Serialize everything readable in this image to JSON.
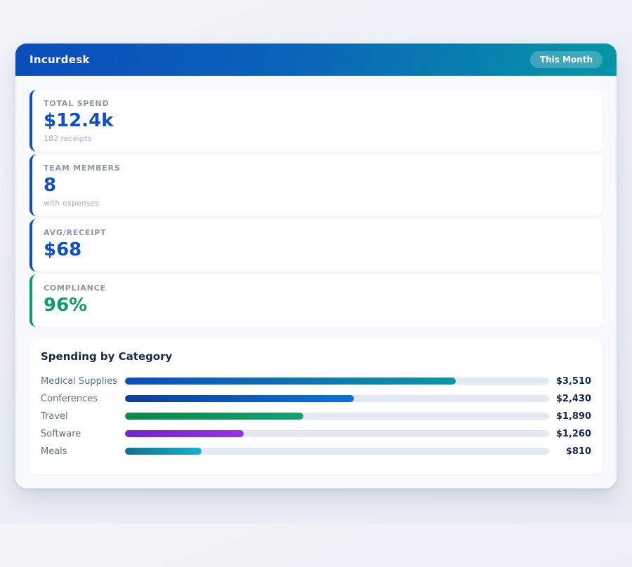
{
  "header": {
    "app_name": "Incurdesk",
    "period_badge": "This Month",
    "gradient_from": "#0b4dbb",
    "gradient_to": "#0796a6"
  },
  "stats": [
    {
      "label": "TOTAL SPEND",
      "value": "$12.4k",
      "sublabel": "182 receipts",
      "accent": "#1150c4"
    },
    {
      "label": "TEAM MEMBERS",
      "value": "8",
      "sublabel": "with expenses",
      "accent": "#1150c4"
    },
    {
      "label": "AVG/RECEIPT",
      "value": "$68",
      "sublabel": "",
      "accent": "#1150c4"
    },
    {
      "label": "COMPLIANCE",
      "value": "96%",
      "sublabel": "",
      "accent": "#0e9d62"
    }
  ],
  "spending": {
    "title": "Spending by Category",
    "rows": [
      {
        "label": "Medical Supplies",
        "value": "$3,510",
        "percent": 78,
        "color_from": "#0b4dbb",
        "color_to": "#0d96a6"
      },
      {
        "label": "Conferences",
        "value": "$2,430",
        "percent": 54,
        "color_from": "#0c3f9e",
        "color_to": "#0b72da"
      },
      {
        "label": "Travel",
        "value": "$1,890",
        "percent": 42,
        "color_from": "#0a8a47",
        "color_to": "#13a173"
      },
      {
        "label": "Software",
        "value": "$1,260",
        "percent": 28,
        "color_from": "#7222d6",
        "color_to": "#9333ea"
      },
      {
        "label": "Meals",
        "value": "$810",
        "percent": 18,
        "color_from": "#0e7290",
        "color_to": "#12b2d2"
      }
    ]
  },
  "chart_data": {
    "type": "bar",
    "title": "Spending by Category",
    "categories": [
      "Medical Supplies",
      "Conferences",
      "Travel",
      "Software",
      "Meals"
    ],
    "values": [
      3510,
      2430,
      1890,
      1260,
      810
    ],
    "value_labels": [
      "$3,510",
      "$2,430",
      "$1,890",
      "$1,260",
      "$810"
    ],
    "orientation": "horizontal",
    "xlim": [
      0,
      4500
    ],
    "grid": false,
    "legend": false
  }
}
